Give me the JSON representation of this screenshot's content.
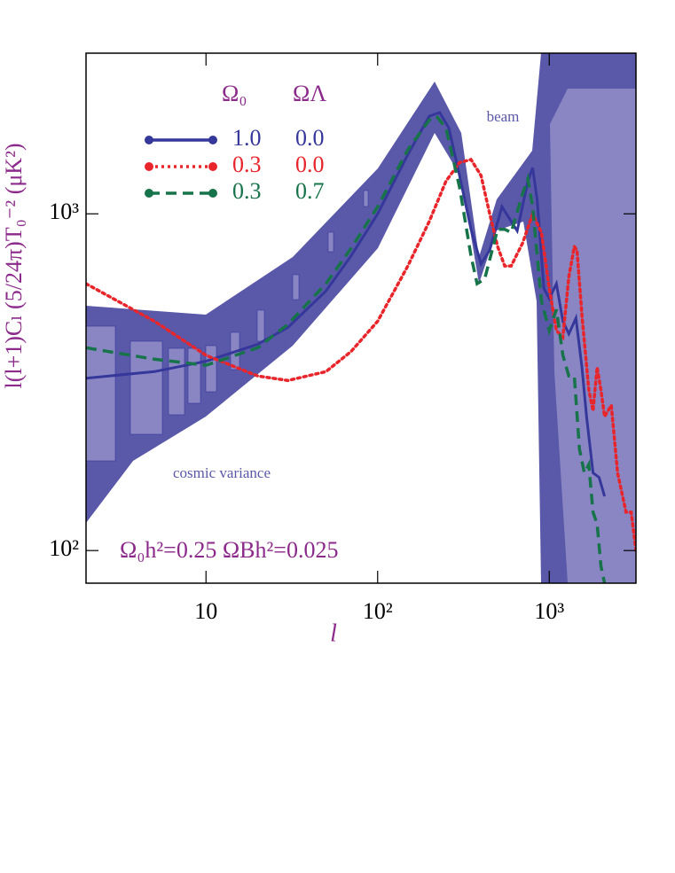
{
  "chart_data": {
    "type": "line",
    "x_label": "l",
    "y_label": "l(l+1)Cₗ (5/24π)T₀⁻² (μK²)",
    "xscale": "log",
    "yscale": "log",
    "xlim": [
      2,
      3200
    ],
    "ylim": [
      80,
      3000
    ],
    "xticks": [
      10,
      {
        "value": 100,
        "label": "10²"
      },
      {
        "value": 1000,
        "label": "10³"
      }
    ],
    "yticks": [
      {
        "value": 100,
        "label": "10²"
      },
      {
        "value": 1000,
        "label": "10³"
      }
    ],
    "legend": {
      "columns": [
        "Ω₀",
        "ΩΛ"
      ]
    },
    "annotations": [
      "beam",
      "cosmic variance",
      "Ω₀h²=0.25  ΩBh²=0.025"
    ],
    "series": [
      {
        "labels": [
          "1.0",
          "0.0"
        ],
        "color": "#35379a",
        "dash": "solid",
        "x": [
          2,
          5,
          10,
          20,
          30,
          50,
          70,
          100,
          150,
          200,
          230,
          260,
          300,
          350,
          400,
          450,
          530,
          600,
          650,
          750,
          800,
          850,
          930,
          1000,
          1100,
          1200,
          1300,
          1430,
          1550,
          1650,
          1800,
          1950,
          2100
        ],
        "values": [
          325,
          340,
          365,
          410,
          460,
          590,
          750,
          1000,
          1500,
          1950,
          2000,
          1800,
          1300,
          900,
          710,
          780,
          1050,
          950,
          890,
          1250,
          1370,
          1100,
          600,
          560,
          620,
          480,
          440,
          490,
          350,
          250,
          170,
          165,
          145
        ]
      },
      {
        "labels": [
          "0.3",
          "0.0"
        ],
        "color": "#e8252b",
        "dash": "dotted",
        "x": [
          2,
          5,
          10,
          20,
          30,
          50,
          70,
          100,
          150,
          200,
          250,
          300,
          350,
          400,
          450,
          500,
          550,
          600,
          700,
          800,
          900,
          1000,
          1100,
          1200,
          1300,
          1400,
          1450,
          1550,
          1700,
          1800,
          1900,
          2000,
          2100,
          2300,
          2500,
          2800,
          3000,
          3200
        ],
        "values": [
          620,
          480,
          380,
          330,
          320,
          340,
          390,
          480,
          700,
          950,
          1250,
          1420,
          1450,
          1300,
          1000,
          800,
          700,
          700,
          820,
          1000,
          880,
          600,
          450,
          430,
          650,
          800,
          780,
          500,
          300,
          260,
          350,
          300,
          250,
          270,
          170,
          130,
          130,
          100
        ]
      },
      {
        "labels": [
          "0.3",
          "0.7"
        ],
        "color": "#17734a",
        "dash": "dashed",
        "x": [
          2,
          5,
          10,
          20,
          30,
          50,
          70,
          100,
          150,
          200,
          220,
          250,
          300,
          350,
          380,
          420,
          500,
          550,
          600,
          700,
          750,
          800,
          900,
          1000,
          1100,
          1200,
          1300,
          1400,
          1500,
          1600,
          1700,
          1800,
          1900,
          2000,
          2100
        ],
        "values": [
          400,
          370,
          355,
          400,
          470,
          620,
          790,
          1050,
          1550,
          1900,
          1950,
          1800,
          1200,
          750,
          620,
          640,
          900,
          900,
          880,
          1150,
          1270,
          1050,
          550,
          450,
          520,
          380,
          330,
          330,
          200,
          170,
          180,
          130,
          120,
          90,
          80
        ]
      }
    ]
  }
}
